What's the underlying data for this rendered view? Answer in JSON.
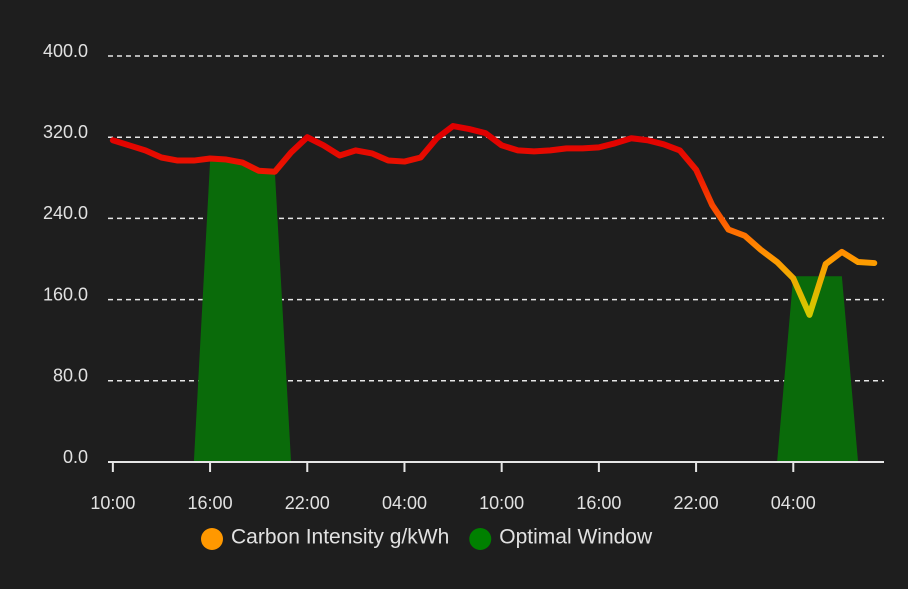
{
  "chart_data": {
    "type": "line",
    "x": [
      0,
      1,
      2,
      3,
      4,
      5,
      6,
      7,
      8,
      9,
      10,
      11,
      12,
      13,
      14,
      15,
      16,
      17,
      18,
      19,
      20,
      21,
      22,
      23,
      24,
      25,
      26,
      27,
      28,
      29,
      30,
      31,
      32,
      33,
      34,
      35,
      36,
      37,
      38,
      39,
      40,
      41,
      42,
      43,
      44,
      45,
      46,
      47
    ],
    "series": [
      {
        "name": "Carbon Intensity g/kWh",
        "color": "#ff9800",
        "kind": "line",
        "values": [
          317,
          312,
          307,
          300,
          297,
          297,
          299,
          298,
          295,
          287,
          286,
          305,
          320,
          312,
          302,
          307,
          304,
          297,
          296,
          300,
          319,
          331,
          328,
          324,
          312,
          307,
          306,
          307,
          309,
          309,
          310,
          314,
          319,
          317,
          313,
          307,
          288,
          253,
          229,
          223,
          209,
          197,
          181,
          145,
          195,
          207,
          197,
          196
        ]
      },
      {
        "name": "Optimal Window",
        "color": "#0a6b0a",
        "kind": "area",
        "values": [
          0,
          0,
          0,
          0,
          0,
          0,
          296,
          296,
          295,
          290,
          286,
          0,
          0,
          0,
          0,
          0,
          0,
          0,
          0,
          0,
          0,
          0,
          0,
          0,
          0,
          0,
          0,
          0,
          0,
          0,
          0,
          0,
          0,
          0,
          0,
          0,
          0,
          0,
          0,
          0,
          0,
          0,
          183,
          183,
          183,
          183,
          0,
          0
        ]
      }
    ],
    "color_scale": [
      {
        "value": 320,
        "color": "#e00000"
      },
      {
        "value": 280,
        "color": "#ee1a00"
      },
      {
        "value": 230,
        "color": "#ff6a00"
      },
      {
        "value": 200,
        "color": "#ff9800"
      },
      {
        "value": 150,
        "color": "#d4c800"
      }
    ],
    "xlim": [
      -0.3,
      47.6
    ],
    "xticks": [
      {
        "value": 0,
        "label": "10:00"
      },
      {
        "value": 6,
        "label": "16:00"
      },
      {
        "value": 12,
        "label": "22:00"
      },
      {
        "value": 18,
        "label": "04:00"
      },
      {
        "value": 24,
        "label": "10:00"
      },
      {
        "value": 30,
        "label": "16:00"
      },
      {
        "value": 36,
        "label": "22:00"
      },
      {
        "value": 42,
        "label": "04:00"
      }
    ],
    "ylim": [
      0,
      400
    ],
    "yticks": [
      {
        "value": 0,
        "label": "0.0"
      },
      {
        "value": 80,
        "label": "80.0"
      },
      {
        "value": 160,
        "label": "160.0"
      },
      {
        "value": 240,
        "label": "240.0"
      },
      {
        "value": 320,
        "label": "320.0"
      },
      {
        "value": 400,
        "label": "400.0"
      }
    ],
    "grid": true
  }
}
